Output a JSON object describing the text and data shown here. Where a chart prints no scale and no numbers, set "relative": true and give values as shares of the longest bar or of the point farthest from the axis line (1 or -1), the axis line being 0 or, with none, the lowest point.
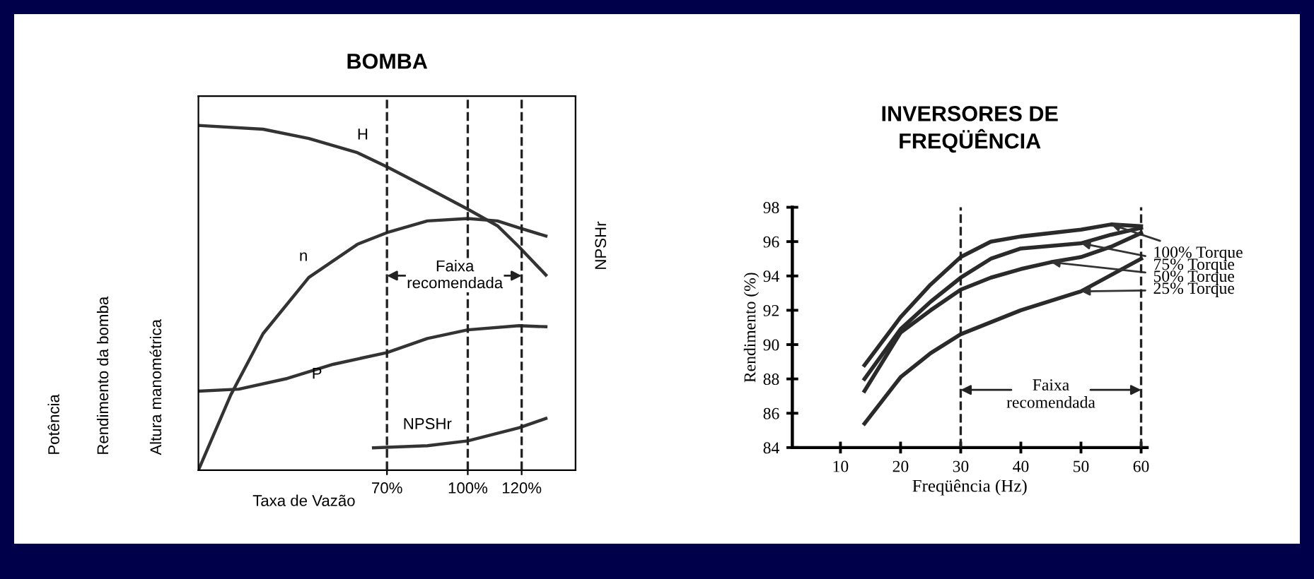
{
  "chart_data": [
    {
      "type": "line",
      "title": "BOMBA",
      "xlabel": "Taxa de Vazão",
      "ylabel": "Altura manométrica",
      "y2label": "NPSHr",
      "relative": true,
      "tick_labels": "x",
      "xlim": [
        0,
        140
      ],
      "xticks": [
        {
          "value": 70,
          "label": "70%"
        },
        {
          "value": 100,
          "label": "100%"
        },
        {
          "value": 120,
          "label": "120%"
        }
      ],
      "ref_lines": [
        {
          "axis": "x",
          "value": 70,
          "line_style": "dashed"
        },
        {
          "axis": "x",
          "value": 100,
          "line_style": "dashed"
        },
        {
          "axis": "x",
          "value": 120,
          "line_style": "dashed"
        }
      ],
      "annotations": [
        "Potência",
        "Rendimento da bomba",
        "Faixa\nrecomendada"
      ],
      "grid": false,
      "marker": "none",
      "line_style": "solid",
      "series": [
        {
          "name": "H",
          "color": "#333333",
          "x": [
            0,
            24,
            41,
            59,
            70,
            85,
            100,
            111,
            119,
            129
          ],
          "values": [
            1.0,
            0.989,
            0.962,
            0.921,
            0.88,
            0.819,
            0.757,
            0.709,
            0.648,
            0.566
          ]
        },
        {
          "name": "n",
          "color": "#333333",
          "x": [
            0,
            12,
            24,
            41,
            59,
            70,
            85,
            100,
            111,
            119,
            129
          ],
          "values": [
            0,
            0.218,
            0.396,
            0.559,
            0.655,
            0.689,
            0.723,
            0.73,
            0.723,
            0.703,
            0.679
          ]
        },
        {
          "name": "P",
          "color": "#333333",
          "x": [
            0,
            15,
            33,
            50,
            70,
            85,
            100,
            119,
            129
          ],
          "values": [
            0.229,
            0.235,
            0.266,
            0.307,
            0.341,
            0.382,
            0.407,
            0.419,
            0.416
          ]
        },
        {
          "name": "NPSHr",
          "color": "#333333",
          "x": [
            65,
            85,
            100,
            119,
            129
          ],
          "values": [
            0.065,
            0.071,
            0.085,
            0.123,
            0.15
          ]
        }
      ]
    },
    {
      "type": "line",
      "title": "INVERSORES DE\nFREQÜÊNCIA",
      "xlabel": "Freqüência (Hz)",
      "ylabel": "Rendimento (%)",
      "xlim": [
        2,
        61
      ],
      "ylim": [
        84,
        98
      ],
      "xticks": [
        10,
        20,
        30,
        40,
        50,
        60
      ],
      "yticks": [
        84,
        86,
        88,
        90,
        92,
        94,
        96,
        98
      ],
      "ref_lines": [
        {
          "axis": "x",
          "value": 30,
          "line_style": "dashed"
        },
        {
          "axis": "x",
          "value": 60,
          "line_style": "dashed"
        }
      ],
      "annotations": [
        "Faixa\nrecomendada"
      ],
      "legend": "right",
      "grid": false,
      "marker": "none",
      "line_style": "solid",
      "series": [
        {
          "name": "100% Torque",
          "color": "#2a2a2a",
          "x": [
            14,
            20,
            25,
            30,
            35,
            40,
            50,
            55,
            60
          ],
          "values": [
            88.8,
            91.6,
            93.5,
            95.1,
            96.0,
            96.3,
            96.7,
            97.0,
            96.9
          ]
        },
        {
          "name": "75% Torque",
          "color": "#2a2a2a",
          "x": [
            14,
            20,
            25,
            30,
            35,
            40,
            50,
            55,
            60
          ],
          "values": [
            88.0,
            90.9,
            92.5,
            93.9,
            95.0,
            95.6,
            95.9,
            96.4,
            96.8
          ]
        },
        {
          "name": "50% Torque",
          "color": "#2a2a2a",
          "x": [
            14,
            20,
            25,
            30,
            35,
            40,
            45,
            50,
            55,
            60
          ],
          "values": [
            87.3,
            90.7,
            92.0,
            93.2,
            93.9,
            94.4,
            94.8,
            95.1,
            95.7,
            96.5
          ]
        },
        {
          "name": "25% Torque",
          "color": "#2a2a2a",
          "x": [
            14,
            20,
            25,
            30,
            40,
            50,
            60
          ],
          "values": [
            85.4,
            88.1,
            89.5,
            90.6,
            92.0,
            93.1,
            95.0
          ]
        }
      ]
    }
  ]
}
